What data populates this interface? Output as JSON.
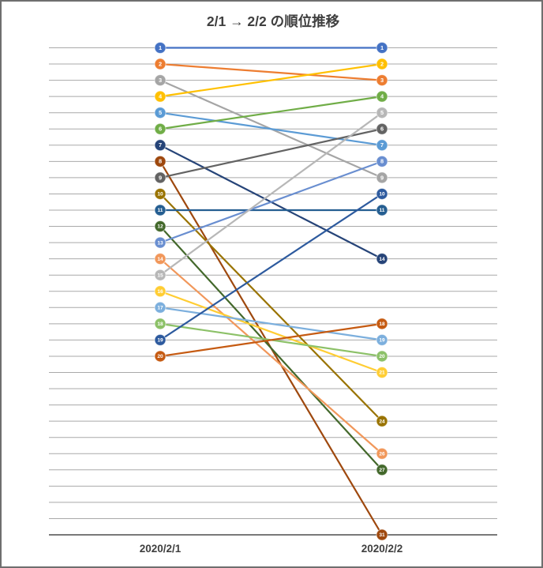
{
  "window": {
    "border_color": "#6F6F6F",
    "background_color": "#FFFFFF"
  },
  "chart_data": {
    "type": "line",
    "subtype": "slope-rank-transition",
    "title": "2/1 → 2/2 の順位推移",
    "columns": [
      "2020/2/1",
      "2020/2/2"
    ],
    "xlabel": "",
    "ylabel": "",
    "rank_axis": {
      "top_rank": 1,
      "bottom_rank": 31,
      "gridline_step": 1,
      "direction": "rank 1 at top, rank increases downward",
      "grid_on": true
    },
    "legend": "none (each point labeled with its rank number)",
    "series": [
      {
        "rank_before": 1,
        "rank_after": 1,
        "color": "#4472C4"
      },
      {
        "rank_before": 2,
        "rank_after": 3,
        "color": "#ED7D31"
      },
      {
        "rank_before": 3,
        "rank_after": 9,
        "color": "#A5A5A5"
      },
      {
        "rank_before": 4,
        "rank_after": 2,
        "color": "#FFC000"
      },
      {
        "rank_before": 5,
        "rank_after": 7,
        "color": "#5B9BD5"
      },
      {
        "rank_before": 6,
        "rank_after": 4,
        "color": "#70AD47"
      },
      {
        "rank_before": 7,
        "rank_after": 14,
        "color": "#264478"
      },
      {
        "rank_before": 8,
        "rank_after": 31,
        "color": "#9E480E"
      },
      {
        "rank_before": 9,
        "rank_after": 6,
        "color": "#636363"
      },
      {
        "rank_before": 10,
        "rank_after": 24,
        "color": "#997300"
      },
      {
        "rank_before": 11,
        "rank_after": 11,
        "color": "#255E91"
      },
      {
        "rank_before": 12,
        "rank_after": 27,
        "color": "#43682B"
      },
      {
        "rank_before": 13,
        "rank_after": 8,
        "color": "#698ED0"
      },
      {
        "rank_before": 14,
        "rank_after": 26,
        "color": "#F1975A"
      },
      {
        "rank_before": 15,
        "rank_after": 5,
        "color": "#B7B7B7"
      },
      {
        "rank_before": 16,
        "rank_after": 21,
        "color": "#FFCD33"
      },
      {
        "rank_before": 17,
        "rank_after": 19,
        "color": "#7CAFDD"
      },
      {
        "rank_before": 18,
        "rank_after": 20,
        "color": "#8CC168"
      },
      {
        "rank_before": 19,
        "rank_after": 10,
        "color": "#2D5A9E"
      },
      {
        "rank_before": 20,
        "rank_after": 18,
        "color": "#C55A11"
      }
    ],
    "colors": {
      "gridline": "#A9A9A9",
      "axis_line": "#4D4D4D",
      "title_text": "#3F3F3F",
      "axis_label_text": "#3F3F3F",
      "node_number_text": "#FFFFFF"
    }
  }
}
